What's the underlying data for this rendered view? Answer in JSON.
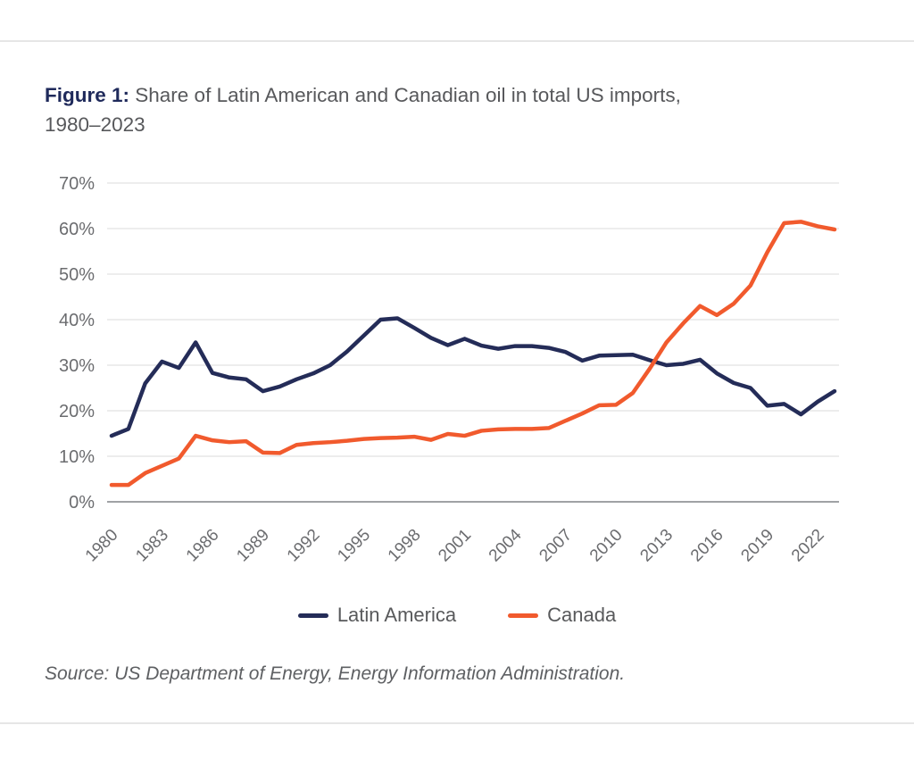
{
  "figure": {
    "title_prefix": "Figure 1:",
    "title_rest": " Share of Latin American and Canadian oil in total US imports,",
    "title_line2": "1980–2023",
    "source": "Source: US Department of Energy, Energy Information Administration."
  },
  "legend": {
    "items": [
      {
        "label": "Latin America",
        "color": "#242c58"
      },
      {
        "label": "Canada",
        "color": "#f15a2d"
      }
    ]
  },
  "colors": {
    "latin_america": "#242c58",
    "canada": "#f15a2d",
    "grid_line": "#e7e7e7",
    "axis_line": "#a0a2a5",
    "tick_text": "#6b6c6f",
    "title_accent": "#1f2a5b",
    "body_text": "#57585b"
  },
  "chart_data": {
    "type": "line",
    "title": "Figure 1: Share of Latin American and Canadian oil in total US imports, 1980–2023",
    "xlabel": "",
    "ylabel": "",
    "ylim": [
      0,
      70
    ],
    "grid": "horizontal",
    "legend_position": "bottom",
    "y_ticks": [
      0,
      10,
      20,
      30,
      40,
      50,
      60,
      70
    ],
    "y_tick_suffix": "%",
    "x_ticks": [
      1980,
      1983,
      1986,
      1989,
      1992,
      1995,
      1998,
      2001,
      2004,
      2007,
      2010,
      2013,
      2016,
      2019,
      2022
    ],
    "x": [
      1980,
      1981,
      1982,
      1983,
      1984,
      1985,
      1986,
      1987,
      1988,
      1989,
      1990,
      1991,
      1992,
      1993,
      1994,
      1995,
      1996,
      1997,
      1998,
      1999,
      2000,
      2001,
      2002,
      2003,
      2004,
      2005,
      2006,
      2007,
      2008,
      2009,
      2010,
      2011,
      2012,
      2013,
      2014,
      2015,
      2016,
      2017,
      2018,
      2019,
      2020,
      2021,
      2022,
      2023
    ],
    "series": [
      {
        "name": "Latin America",
        "color": "#242c58",
        "values": [
          14.5,
          16.0,
          26.0,
          30.8,
          29.4,
          35.0,
          28.3,
          27.3,
          26.9,
          24.3,
          25.3,
          26.9,
          28.2,
          30.0,
          33.0,
          36.5,
          40.0,
          40.3,
          38.2,
          36.0,
          34.4,
          35.8,
          34.3,
          33.6,
          34.2,
          34.2,
          33.8,
          32.9,
          31.0,
          32.1,
          32.2,
          32.3,
          31.1,
          30.0,
          30.3,
          31.2,
          28.2,
          26.1,
          25.0,
          21.1,
          21.5,
          19.2,
          22.0,
          24.3
        ]
      },
      {
        "name": "Canada",
        "color": "#f15a2d",
        "values": [
          3.7,
          3.7,
          6.3,
          7.9,
          9.5,
          14.5,
          13.5,
          13.1,
          13.3,
          10.8,
          10.7,
          12.5,
          12.9,
          13.1,
          13.4,
          13.8,
          14.0,
          14.1,
          14.3,
          13.6,
          14.9,
          14.5,
          15.6,
          15.9,
          16.0,
          16.0,
          16.2,
          17.8,
          19.4,
          21.2,
          21.3,
          23.9,
          29.2,
          35.0,
          39.2,
          43.0,
          41.0,
          43.5,
          47.5,
          54.8,
          61.2,
          61.5,
          60.5,
          59.8
        ]
      }
    ],
    "source": "Source: US Department of Energy, Energy Information Administration."
  }
}
